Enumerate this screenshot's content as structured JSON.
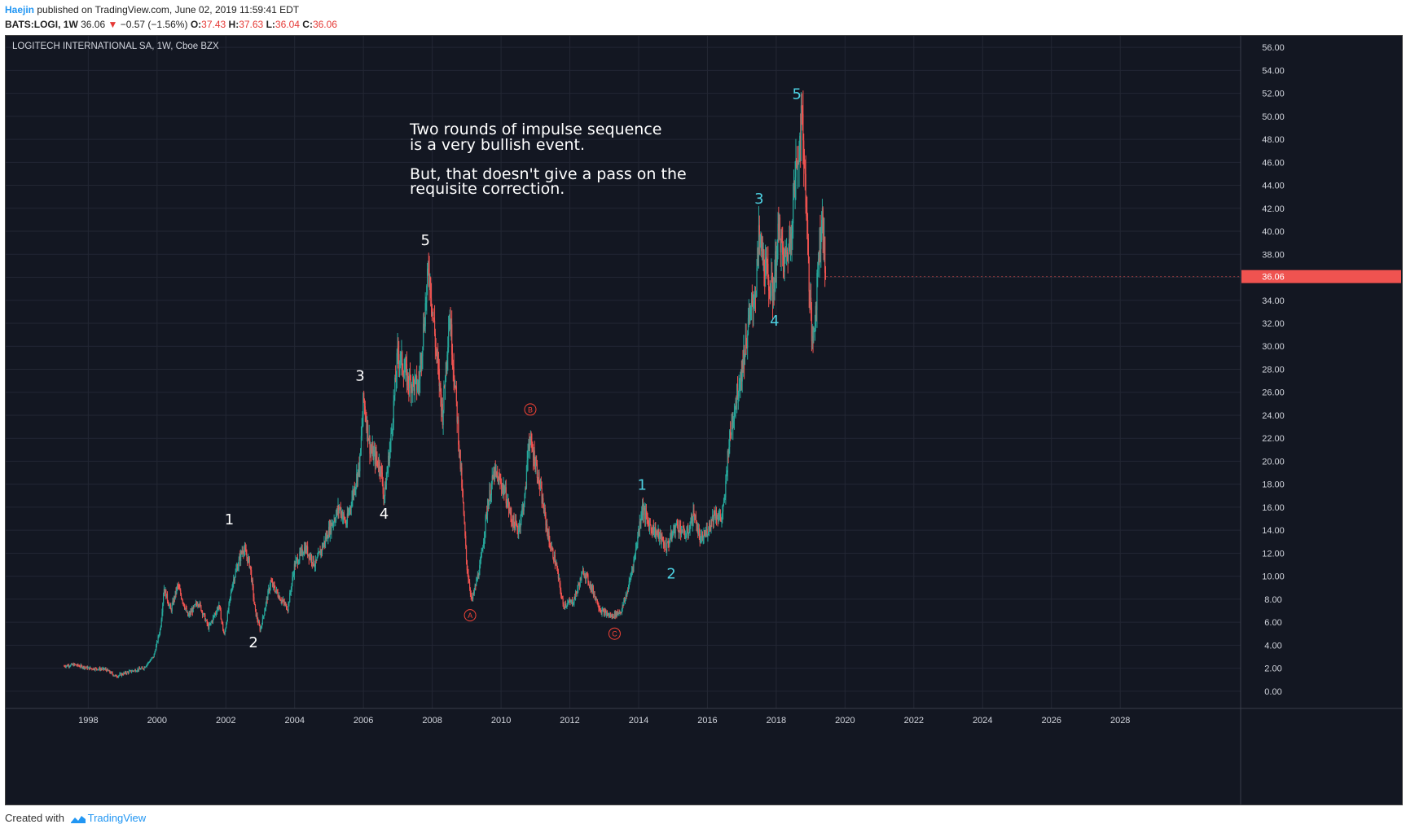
{
  "header": {
    "author": "Haejin",
    "published_text": " published on TradingView.com, June 02, 2019 11:59:41 EDT"
  },
  "quote": {
    "symbol": "BATS:LOGI, 1W",
    "last": "36.06",
    "change": "−0.57 (−1.56%)",
    "open_label": "O:",
    "open": "37.43",
    "high_label": "H:",
    "high": "37.63",
    "low_label": "L:",
    "low": "36.04",
    "close_label": "C:",
    "close": "36.06"
  },
  "footer": {
    "created_with": "Created with",
    "brand": "TradingView"
  },
  "chart_data": {
    "type": "candlestick",
    "title": "LOGITECH INTERNATIONAL SA, 1W, Cboe BZX",
    "last_price_label": "36.06",
    "last_price": 36.06,
    "ylim": [
      -1.5,
      57
    ],
    "xlim": [
      1995.6,
      2031.5
    ],
    "y_ticks": [
      "56.00",
      "54.00",
      "52.00",
      "50.00",
      "48.00",
      "46.00",
      "44.00",
      "42.00",
      "40.00",
      "38.00",
      "36.00",
      "34.00",
      "32.00",
      "30.00",
      "28.00",
      "26.00",
      "24.00",
      "22.00",
      "20.00",
      "18.00",
      "16.00",
      "14.00",
      "12.00",
      "10.00",
      "8.00",
      "6.00",
      "4.00",
      "2.00",
      "0.00"
    ],
    "x_ticks": [
      "1998",
      "2000",
      "2002",
      "2004",
      "2006",
      "2008",
      "2010",
      "2012",
      "2014",
      "2016",
      "2018",
      "2020",
      "2022",
      "2024",
      "2026",
      "2028"
    ],
    "price_path": [
      [
        1997.3,
        2.2
      ],
      [
        1997.6,
        2.3
      ],
      [
        1998.0,
        2.0
      ],
      [
        1998.5,
        1.9
      ],
      [
        1998.8,
        1.3
      ],
      [
        1999.2,
        1.7
      ],
      [
        1999.6,
        2.0
      ],
      [
        1999.9,
        3.0
      ],
      [
        2000.1,
        5.5
      ],
      [
        2000.2,
        9.0
      ],
      [
        2000.4,
        7.0
      ],
      [
        2000.6,
        9.2
      ],
      [
        2000.9,
        6.5
      ],
      [
        2001.2,
        7.8
      ],
      [
        2001.5,
        5.5
      ],
      [
        2001.8,
        7.5
      ],
      [
        2001.95,
        4.8
      ],
      [
        2002.2,
        9.5
      ],
      [
        2002.5,
        12.5
      ],
      [
        2002.7,
        11.0
      ],
      [
        2002.85,
        7.0
      ],
      [
        2003.0,
        5.3
      ],
      [
        2003.3,
        9.5
      ],
      [
        2003.6,
        8.0
      ],
      [
        2003.8,
        7.2
      ],
      [
        2004.0,
        11.0
      ],
      [
        2004.3,
        12.5
      ],
      [
        2004.6,
        11.0
      ],
      [
        2005.0,
        14.0
      ],
      [
        2005.3,
        16.0
      ],
      [
        2005.5,
        14.5
      ],
      [
        2005.9,
        20.0
      ],
      [
        2006.0,
        25.5
      ],
      [
        2006.2,
        21.0
      ],
      [
        2006.5,
        19.5
      ],
      [
        2006.6,
        16.8
      ],
      [
        2006.8,
        22.0
      ],
      [
        2007.0,
        29.5
      ],
      [
        2007.3,
        27.0
      ],
      [
        2007.6,
        26.5
      ],
      [
        2007.9,
        37.0
      ],
      [
        2008.1,
        30.0
      ],
      [
        2008.3,
        24.0
      ],
      [
        2008.5,
        33.0
      ],
      [
        2008.7,
        25.0
      ],
      [
        2008.9,
        16.0
      ],
      [
        2009.0,
        11.0
      ],
      [
        2009.15,
        7.8
      ],
      [
        2009.4,
        11.0
      ],
      [
        2009.6,
        16.0
      ],
      [
        2009.8,
        19.0
      ],
      [
        2010.1,
        17.5
      ],
      [
        2010.3,
        15.0
      ],
      [
        2010.5,
        14.0
      ],
      [
        2010.7,
        17.0
      ],
      [
        2010.8,
        22.0
      ],
      [
        2011.0,
        20.0
      ],
      [
        2011.2,
        16.5
      ],
      [
        2011.4,
        13.0
      ],
      [
        2011.6,
        11.0
      ],
      [
        2011.8,
        7.5
      ],
      [
        2012.1,
        7.8
      ],
      [
        2012.4,
        10.5
      ],
      [
        2012.7,
        8.5
      ],
      [
        2012.9,
        7.0
      ],
      [
        2013.2,
        6.5
      ],
      [
        2013.5,
        7.0
      ],
      [
        2013.7,
        9.0
      ],
      [
        2013.9,
        12.0
      ],
      [
        2014.1,
        16.0
      ],
      [
        2014.3,
        14.5
      ],
      [
        2014.6,
        13.5
      ],
      [
        2014.8,
        12.5
      ],
      [
        2015.1,
        14.5
      ],
      [
        2015.4,
        13.5
      ],
      [
        2015.6,
        15.5
      ],
      [
        2015.8,
        13.0
      ],
      [
        2016.0,
        14.0
      ],
      [
        2016.2,
        15.5
      ],
      [
        2016.4,
        15.0
      ],
      [
        2016.5,
        16.5
      ],
      [
        2016.6,
        21.0
      ],
      [
        2016.8,
        25.0
      ],
      [
        2017.0,
        28.0
      ],
      [
        2017.2,
        32.0
      ],
      [
        2017.4,
        35.0
      ],
      [
        2017.5,
        39.5
      ],
      [
        2017.7,
        36.5
      ],
      [
        2017.9,
        34.5
      ],
      [
        2018.0,
        38.0
      ],
      [
        2018.1,
        40.5
      ],
      [
        2018.2,
        37.0
      ],
      [
        2018.4,
        39.0
      ],
      [
        2018.5,
        43.0
      ],
      [
        2018.6,
        46.0
      ],
      [
        2018.7,
        48.5
      ],
      [
        2018.75,
        50.0
      ],
      [
        2018.85,
        44.0
      ],
      [
        2018.95,
        36.0
      ],
      [
        2019.05,
        30.0
      ],
      [
        2019.15,
        33.5
      ],
      [
        2019.25,
        39.0
      ],
      [
        2019.35,
        41.5
      ],
      [
        2019.42,
        36.5
      ],
      [
        2019.45,
        36.06
      ]
    ],
    "annotations": {
      "text_box_lines": [
        "Two rounds of impulse sequence",
        "is a very bullish event.",
        "",
        "But, that doesn't give a pass on the",
        "requisite correction."
      ],
      "wave_labels": [
        {
          "label": "1",
          "x": 2002.1,
          "y": 14.5,
          "color": "#ffffff"
        },
        {
          "label": "2",
          "x": 2002.8,
          "y": 3.8,
          "color": "#ffffff"
        },
        {
          "label": "3",
          "x": 2005.9,
          "y": 27.0,
          "color": "#ffffff"
        },
        {
          "label": "4",
          "x": 2006.6,
          "y": 15.0,
          "color": "#ffffff"
        },
        {
          "label": "5",
          "x": 2007.8,
          "y": 38.8,
          "color": "#ffffff"
        },
        {
          "label": "1",
          "x": 2014.1,
          "y": 17.5,
          "color": "#4dd0e1"
        },
        {
          "label": "2",
          "x": 2014.95,
          "y": 9.8,
          "color": "#4dd0e1"
        },
        {
          "label": "3",
          "x": 2017.5,
          "y": 42.4,
          "color": "#4dd0e1"
        },
        {
          "label": "4",
          "x": 2017.95,
          "y": 31.8,
          "color": "#4dd0e1"
        },
        {
          "label": "5",
          "x": 2018.6,
          "y": 51.5,
          "color": "#4dd0e1"
        }
      ],
      "circle_labels": [
        {
          "label": "A",
          "x": 2009.1,
          "y": 6.6,
          "color": "#f44336"
        },
        {
          "label": "B",
          "x": 2010.85,
          "y": 24.5,
          "color": "#f44336"
        },
        {
          "label": "C",
          "x": 2013.3,
          "y": 5.0,
          "color": "#f44336"
        }
      ]
    },
    "colors": {
      "background": "#131722",
      "grid": "#232734",
      "up": "#26a69a",
      "down": "#ef5350",
      "axis_text": "#d1d4dc",
      "last_price_bg": "#ef5350",
      "impulse_1": "#ffffff",
      "impulse_2": "#4dd0e1",
      "correction": "#f44336"
    }
  }
}
